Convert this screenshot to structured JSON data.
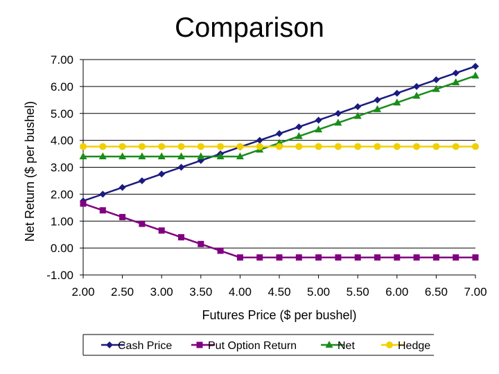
{
  "chart_data": {
    "type": "line",
    "title": "Comparison",
    "xlabel": "Futures Price ($ per bushel)",
    "ylabel": "Net Return ($ per bushel)",
    "xlim": [
      2.0,
      7.0
    ],
    "ylim": [
      -1.0,
      7.0
    ],
    "x_ticks": [
      "2.00",
      "2.50",
      "3.00",
      "3.50",
      "4.00",
      "4.50",
      "5.00",
      "5.50",
      "6.00",
      "6.50",
      "7.00"
    ],
    "y_ticks": [
      "-1.00",
      "0.00",
      "1.00",
      "2.00",
      "3.00",
      "4.00",
      "5.00",
      "6.00",
      "7.00"
    ],
    "x": [
      2.0,
      2.25,
      2.5,
      2.75,
      3.0,
      3.25,
      3.5,
      3.75,
      4.0,
      4.25,
      4.5,
      4.75,
      5.0,
      5.25,
      5.5,
      5.75,
      6.0,
      6.25,
      6.5,
      6.75,
      7.0
    ],
    "grid": "horizontal",
    "legend_position": "bottom",
    "series": [
      {
        "name": "Cash Price",
        "color": "#1a1a80",
        "marker": "diamond",
        "values": [
          1.75,
          2.0,
          2.25,
          2.5,
          2.75,
          3.0,
          3.25,
          3.5,
          3.75,
          4.0,
          4.25,
          4.5,
          4.75,
          5.0,
          5.25,
          5.5,
          5.75,
          6.0,
          6.25,
          6.5,
          6.75
        ]
      },
      {
        "name": "Put Option Return",
        "color": "#800080",
        "marker": "square",
        "values": [
          1.65,
          1.4,
          1.15,
          0.9,
          0.65,
          0.4,
          0.15,
          -0.1,
          -0.35,
          -0.35,
          -0.35,
          -0.35,
          -0.35,
          -0.35,
          -0.35,
          -0.35,
          -0.35,
          -0.35,
          -0.35,
          -0.35,
          -0.35
        ]
      },
      {
        "name": "Net",
        "color": "#1a8c1a",
        "marker": "triangle",
        "values": [
          3.4,
          3.4,
          3.4,
          3.4,
          3.4,
          3.4,
          3.4,
          3.4,
          3.4,
          3.65,
          3.9,
          4.15,
          4.4,
          4.65,
          4.9,
          5.15,
          5.4,
          5.65,
          5.9,
          6.15,
          6.4
        ]
      },
      {
        "name": "Hedge",
        "color": "#f0d000",
        "marker": "circle",
        "values": [
          3.77,
          3.77,
          3.77,
          3.77,
          3.77,
          3.77,
          3.77,
          3.77,
          3.77,
          3.77,
          3.77,
          3.77,
          3.77,
          3.77,
          3.77,
          3.77,
          3.77,
          3.77,
          3.77,
          3.77,
          3.77
        ]
      }
    ]
  }
}
